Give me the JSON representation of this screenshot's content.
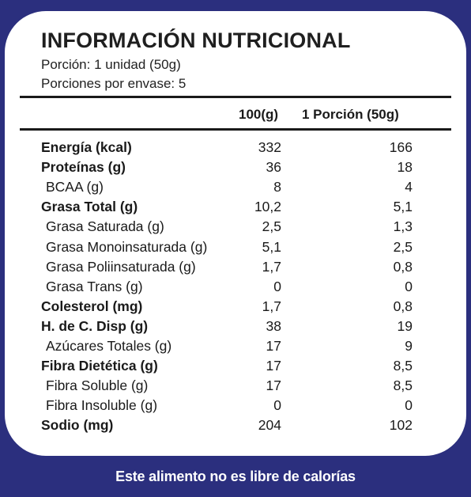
{
  "header": {
    "title": "INFORMACIÓN NUTRICIONAL",
    "serving": "Porción: 1 unidad (50g)",
    "servings_per_pack": "Porciones por envase: 5"
  },
  "columns": {
    "per100": "100(g)",
    "per_portion": "1 Porción (50g)"
  },
  "rows": [
    {
      "label": "Energía (kcal)",
      "v100": "332",
      "vport": "166",
      "bold": true
    },
    {
      "label": "Proteínas (g)",
      "v100": "36",
      "vport": "18",
      "bold": true
    },
    {
      "label": "BCAA (g)",
      "v100": "8",
      "vport": "4",
      "bold": false
    },
    {
      "label": "Grasa Total (g)",
      "v100": "10,2",
      "vport": "5,1",
      "bold": true
    },
    {
      "label": "Grasa Saturada (g)",
      "v100": "2,5",
      "vport": "1,3",
      "bold": false
    },
    {
      "label": "Grasa Monoinsaturada (g)",
      "v100": "5,1",
      "vport": "2,5",
      "bold": false
    },
    {
      "label": "Grasa Poliinsaturada (g)",
      "v100": "1,7",
      "vport": "0,8",
      "bold": false
    },
    {
      "label": "Grasa Trans (g)",
      "v100": "0",
      "vport": "0",
      "bold": false
    },
    {
      "label": "Colesterol (mg)",
      "v100": "1,7",
      "vport": "0,8",
      "bold": true
    },
    {
      "label": "H. de C. Disp (g)",
      "v100": "38",
      "vport": "19",
      "bold": true
    },
    {
      "label": "Azúcares Totales (g)",
      "v100": "17",
      "vport": "9",
      "bold": false
    },
    {
      "label": "Fibra Dietética (g)",
      "v100": "17",
      "vport": "8,5",
      "bold": true
    },
    {
      "label": "Fibra Soluble (g)",
      "v100": "17",
      "vport": "8,5",
      "bold": false
    },
    {
      "label": "Fibra Insoluble (g)",
      "v100": "0",
      "vport": "0",
      "bold": false
    },
    {
      "label": "Sodio (mg)",
      "v100": "204",
      "vport": "102",
      "bold": true
    }
  ],
  "footer": "Este alimento no es libre de calorías",
  "colors": {
    "background": "#2b2f7e",
    "panel": "#ffffff",
    "text": "#1a1a1a"
  }
}
